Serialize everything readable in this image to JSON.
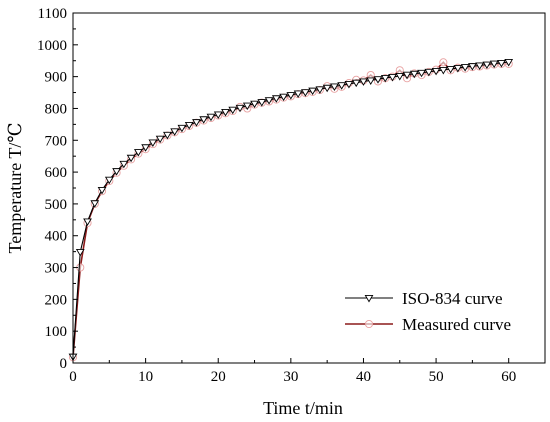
{
  "chart_data": {
    "type": "line",
    "title": "",
    "xlabel": "Time  t/min",
    "ylabel": "Temperature  T/℃",
    "xlim": [
      0,
      65
    ],
    "ylim": [
      0,
      1100
    ],
    "xticks": [
      0,
      10,
      20,
      30,
      40,
      50,
      60
    ],
    "yticks": [
      0,
      100,
      200,
      300,
      400,
      500,
      600,
      700,
      800,
      900,
      1000,
      1100
    ],
    "grid": false,
    "legend_position": "bottom-right",
    "series": [
      {
        "name": "ISO-834 curve",
        "color": "#000000",
        "marker": "triangle-down",
        "x": [
          0,
          1,
          2,
          3,
          4,
          5,
          6,
          7,
          8,
          9,
          10,
          11,
          12,
          13,
          14,
          15,
          16,
          17,
          18,
          19,
          20,
          21,
          22,
          23,
          24,
          25,
          26,
          27,
          28,
          29,
          30,
          31,
          32,
          33,
          34,
          35,
          36,
          37,
          38,
          39,
          40,
          41,
          42,
          43,
          44,
          45,
          46,
          47,
          48,
          49,
          50,
          51,
          52,
          53,
          54,
          55,
          56,
          57,
          58,
          59,
          60
        ],
        "y": [
          20,
          349,
          445,
          502,
          544,
          576,
          603,
          626,
          645,
          663,
          678,
          693,
          705,
          717,
          728,
          739,
          748,
          757,
          766,
          774,
          781,
          789,
          796,
          802,
          809,
          815,
          820,
          826,
          832,
          837,
          842,
          847,
          851,
          856,
          860,
          865,
          869,
          873,
          877,
          881,
          885,
          888,
          892,
          896,
          899,
          902,
          906,
          909,
          912,
          915,
          918,
          921,
          924,
          927,
          930,
          933,
          935,
          938,
          941,
          943,
          946
        ]
      },
      {
        "name": "Measured curve",
        "color": "#8b1a1a",
        "marker": "circle",
        "x": [
          0,
          1,
          2,
          3,
          4,
          5,
          6,
          7,
          8,
          9,
          10,
          11,
          12,
          13,
          14,
          15,
          16,
          17,
          18,
          19,
          20,
          21,
          22,
          23,
          24,
          25,
          26,
          27,
          28,
          29,
          30,
          31,
          32,
          33,
          34,
          35,
          36,
          37,
          38,
          39,
          40,
          41,
          42,
          43,
          44,
          45,
          46,
          47,
          48,
          49,
          50,
          51,
          52,
          53,
          54,
          55,
          56,
          57,
          58,
          59,
          60
        ],
        "y": [
          18,
          300,
          440,
          500,
          540,
          572,
          598,
          620,
          640,
          658,
          672,
          688,
          702,
          715,
          725,
          735,
          745,
          755,
          762,
          770,
          778,
          785,
          792,
          805,
          800,
          812,
          818,
          822,
          828,
          834,
          838,
          845,
          848,
          852,
          858,
          870,
          862,
          868,
          880,
          890,
          888,
          905,
          885,
          895,
          900,
          920,
          895,
          910,
          905,
          915,
          922,
          945,
          920,
          928,
          925,
          930,
          932,
          935,
          938,
          940,
          940
        ]
      }
    ]
  }
}
